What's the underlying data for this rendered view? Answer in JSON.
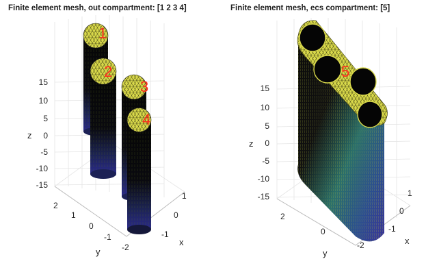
{
  "panels": [
    {
      "title": "Finite element mesh, out compartment: [1 2 3 4]",
      "compartment_labels": [
        "1",
        "2",
        "3",
        "4"
      ],
      "z_ticks": [
        "15",
        "10",
        "5",
        "0",
        "-5",
        "-10",
        "-15"
      ],
      "y_ticks": [
        "2",
        "1",
        "0",
        "-1",
        "-2"
      ],
      "x_ticks": [
        "1",
        "0",
        "-1"
      ],
      "xlabel": "x",
      "ylabel": "y",
      "zlabel": "z"
    },
    {
      "title": "Finite element mesh, ecs compartment: [5]",
      "compartment_labels": [
        "5"
      ],
      "z_ticks": [
        "15",
        "10",
        "5",
        "0",
        "-5",
        "-10",
        "-15"
      ],
      "y_ticks": [
        "2",
        "0",
        "-2"
      ],
      "x_ticks": [
        "1",
        "0",
        "-1"
      ],
      "xlabel": "x",
      "ylabel": "y",
      "zlabel": "z"
    }
  ],
  "colors": {
    "cap_fill": "#d8d84a",
    "mesh_line": "#3a3a10",
    "cylinder_body": "#050505",
    "label": "#ff2b1c",
    "grid": "#e4e4e4"
  }
}
